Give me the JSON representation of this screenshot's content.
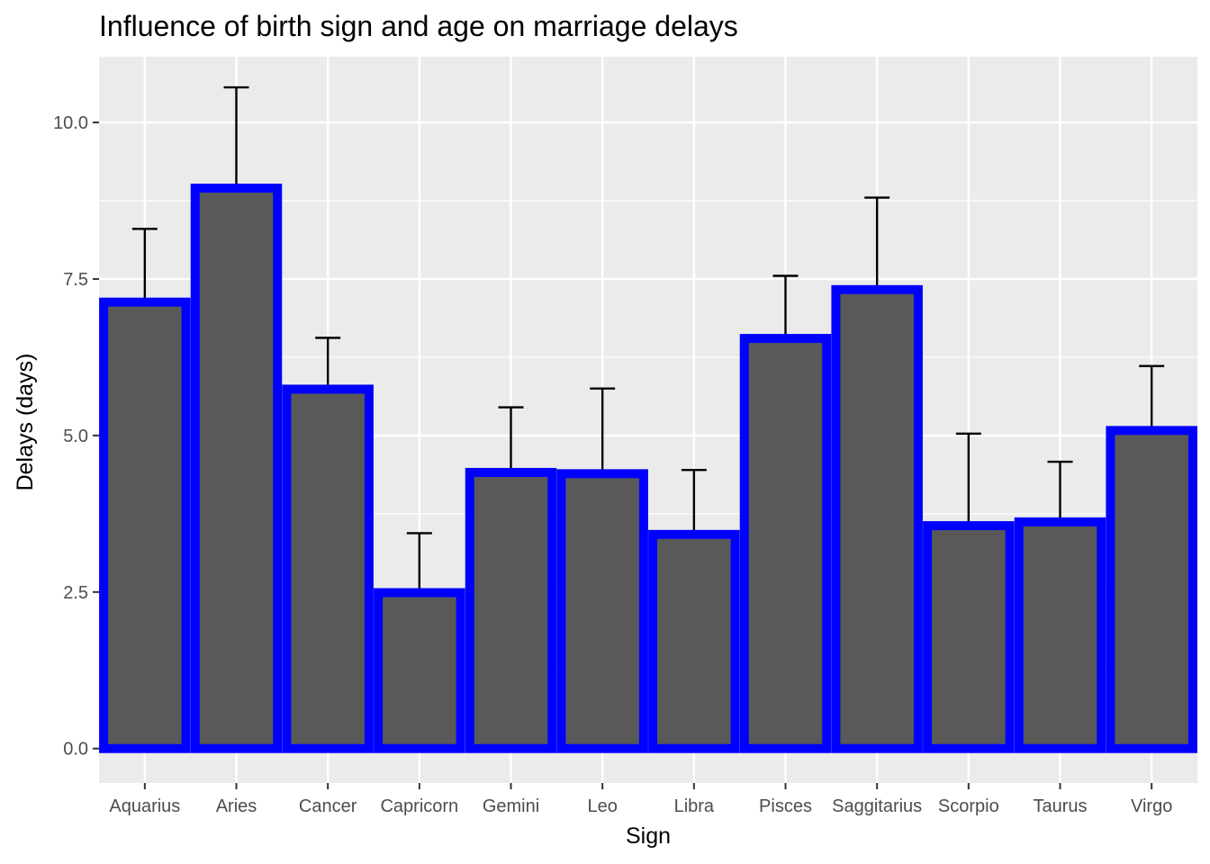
{
  "chart_data": {
    "type": "bar",
    "title": "Influence of birth sign and age on marriage delays",
    "xlabel": "Sign",
    "ylabel": "Delays (days)",
    "categories": [
      "Aquarius",
      "Aries",
      "Cancer",
      "Capricorn",
      "Gemini",
      "Leo",
      "Libra",
      "Pisces",
      "Saggitarius",
      "Scorpio",
      "Taurus",
      "Virgo"
    ],
    "values": [
      7.13,
      8.95,
      5.74,
      2.49,
      4.41,
      4.39,
      3.42,
      6.55,
      7.33,
      3.56,
      3.62,
      5.08
    ],
    "error_upper": [
      8.3,
      10.56,
      6.56,
      3.44,
      5.45,
      5.75,
      4.45,
      7.55,
      8.8,
      5.03,
      4.58,
      6.11
    ],
    "ylim": [
      -0.55,
      11.05
    ],
    "yticks": [
      0.0,
      2.5,
      5.0,
      7.5,
      10.0
    ],
    "ytick_labels": [
      "0.0",
      "2.5",
      "5.0",
      "7.5",
      "10.0"
    ],
    "grid": true,
    "legend": "none",
    "colors": {
      "bar_fill": "#595959",
      "bar_outline": "#0000ff",
      "panel_background": "#ebebeb",
      "grid": "#ffffff",
      "error_bar": "#000000"
    }
  }
}
